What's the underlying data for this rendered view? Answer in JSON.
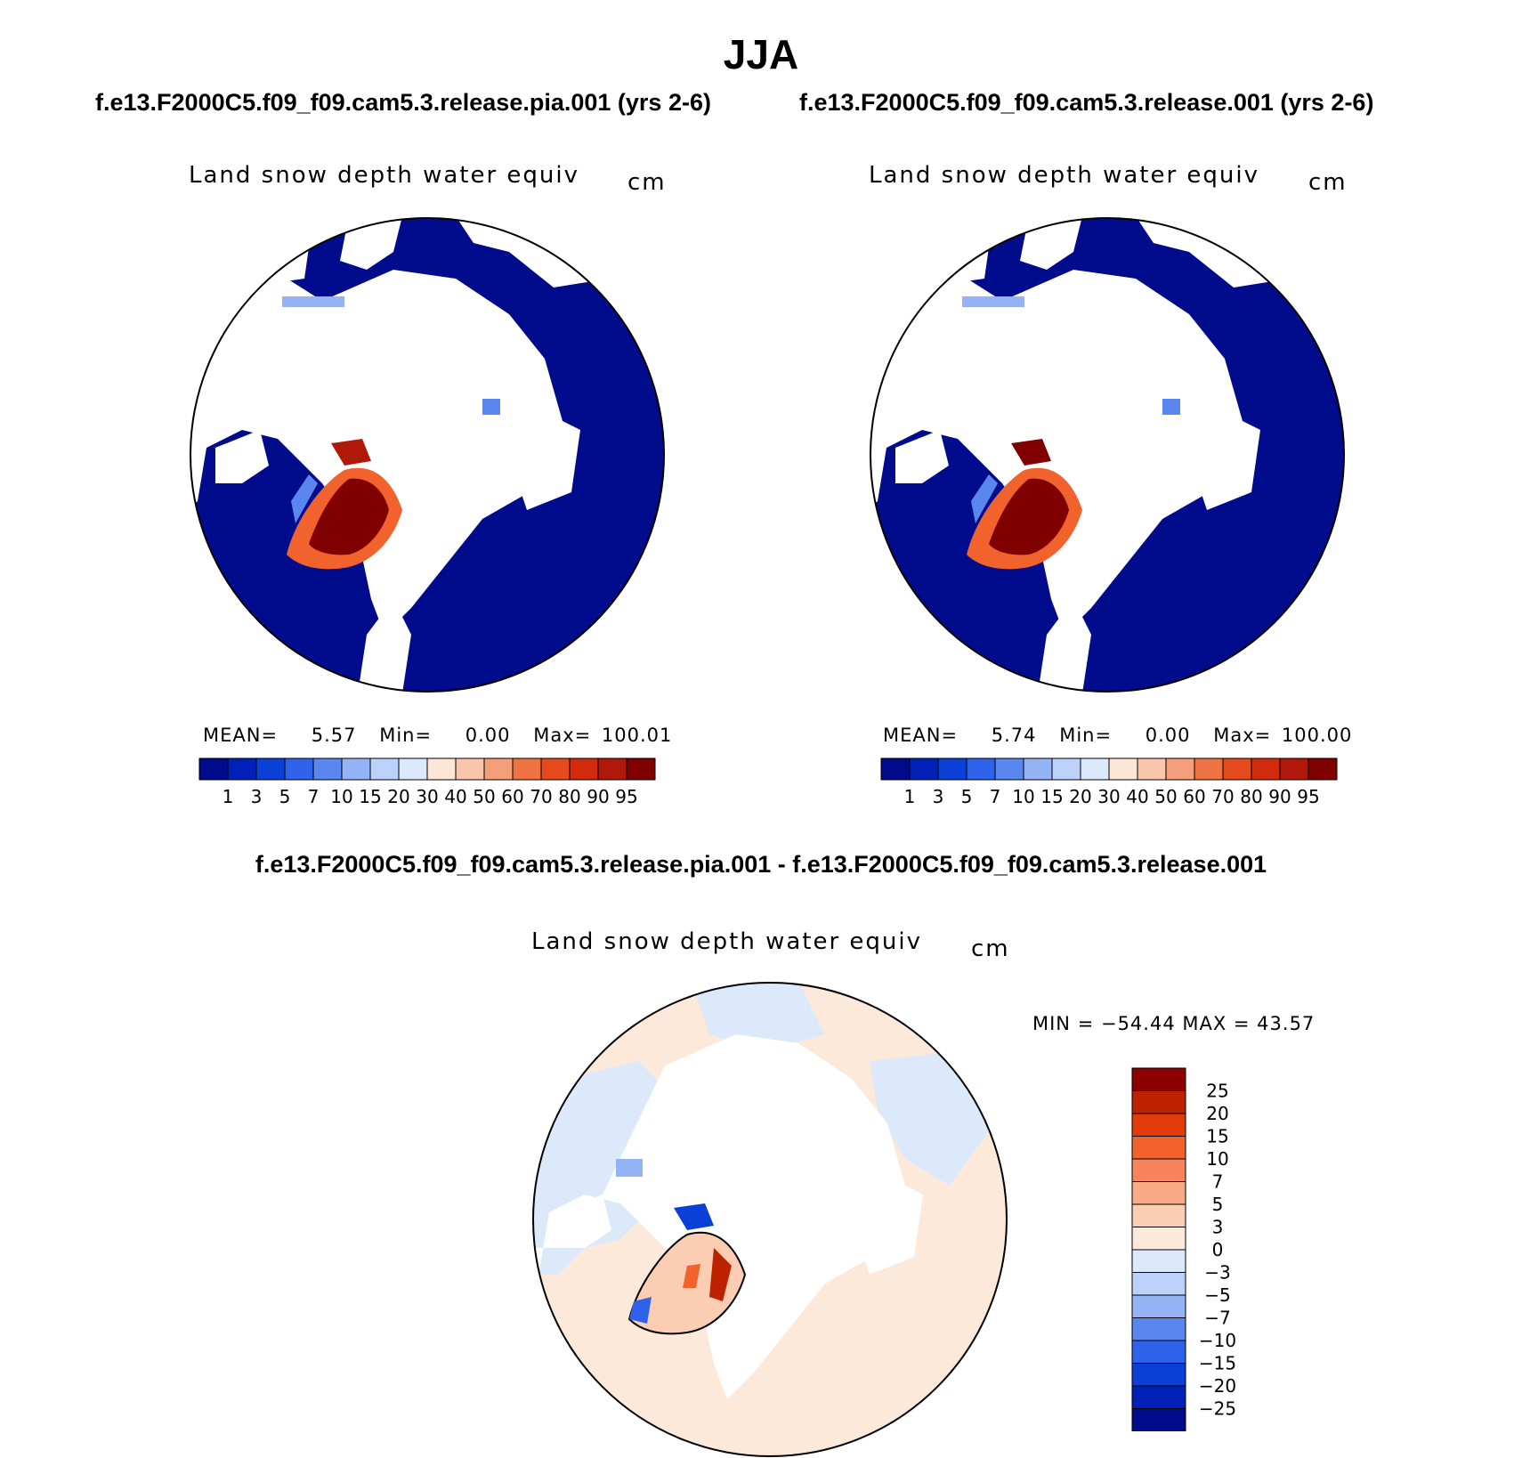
{
  "title": "JJA",
  "case_a": "f.e13.F2000C5.f09_f09.cam5.3.release.pia.001 (yrs 2-6)",
  "case_b": "f.e13.F2000C5.f09_f09.cam5.3.release.001 (yrs 2-6)",
  "diff_title": "f.e13.F2000C5.f09_f09.cam5.3.release.pia.001 - f.e13.F2000C5.f09_f09.cam5.3.release.001",
  "variable": "Land snow depth water equiv",
  "units": "cm",
  "panels": [
    {
      "mean_label": "MEAN=",
      "mean": "5.57",
      "min_label": "Min=",
      "min": "0.00",
      "max_label": "Max=",
      "max": "100.01"
    },
    {
      "mean_label": "MEAN=",
      "mean": "5.74",
      "min_label": "Min=",
      "min": "0.00",
      "max_label": "Max=",
      "max": "100.00"
    }
  ],
  "diff_stats": "MIN = −54.44 MAX =   43.57",
  "colorbar_levels": [
    "1",
    "3",
    "5",
    "7",
    "10",
    "15",
    "20",
    "30",
    "40",
    "50",
    "60",
    "70",
    "80",
    "90",
    "95"
  ],
  "colorbar_colors": [
    "#000c8c",
    "#0020b8",
    "#0a3fd8",
    "#2e62ea",
    "#5a86f0",
    "#93b3f6",
    "#bcd2fb",
    "#dce9fb",
    "#fce6d8",
    "#f9c6ac",
    "#f49e7a",
    "#ef7242",
    "#e54a1c",
    "#d22a0c",
    "#b0180a",
    "#800000"
  ],
  "diff_levels": [
    "25",
    "20",
    "15",
    "10",
    "7",
    "5",
    "3",
    "0",
    "−3",
    "−5",
    "−7",
    "−10",
    "−15",
    "−20",
    "−25"
  ],
  "diff_colors": [
    "#8c0000",
    "#bc2200",
    "#e23a08",
    "#f2622c",
    "#f7845a",
    "#f9aa86",
    "#fbcdb2",
    "#fde9da",
    "#dce9fb",
    "#bcd2fb",
    "#93b3f6",
    "#5a86f0",
    "#2e62ea",
    "#0a3fd8",
    "#0020b8",
    "#000c8c"
  ],
  "colors": {
    "ocean_snow": "#000c8c",
    "ice_sheet": "#800000",
    "diff_pos": "#fde9da",
    "diff_neg": "#dce9fb"
  }
}
